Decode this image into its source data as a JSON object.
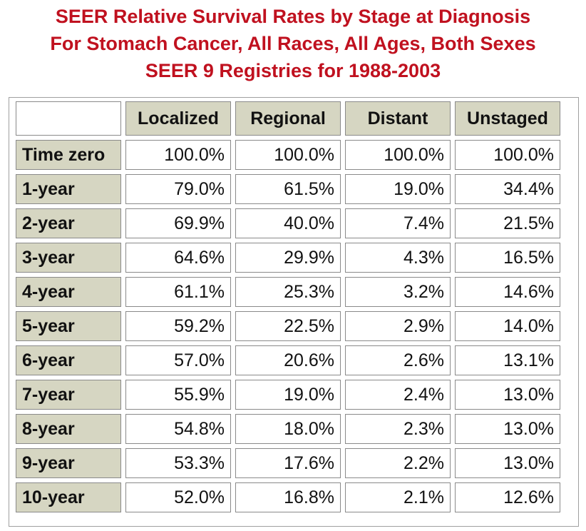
{
  "title": {
    "line1": "SEER Relative Survival Rates by Stage at Diagnosis",
    "line2": "For Stomach Cancer, All Races, All Ages, Both Sexes",
    "line3": "SEER 9 Registries for 1988-2003"
  },
  "table": {
    "columns": [
      "Localized",
      "Regional",
      "Distant",
      "Unstaged"
    ],
    "rows": [
      {
        "label": "Time zero",
        "values": [
          "100.0%",
          "100.0%",
          "100.0%",
          "100.0%"
        ]
      },
      {
        "label": "1-year",
        "values": [
          "79.0%",
          "61.5%",
          "19.0%",
          "34.4%"
        ]
      },
      {
        "label": "2-year",
        "values": [
          "69.9%",
          "40.0%",
          "7.4%",
          "21.5%"
        ]
      },
      {
        "label": "3-year",
        "values": [
          "64.6%",
          "29.9%",
          "4.3%",
          "16.5%"
        ]
      },
      {
        "label": "4-year",
        "values": [
          "61.1%",
          "25.3%",
          "3.2%",
          "14.6%"
        ]
      },
      {
        "label": "5-year",
        "values": [
          "59.2%",
          "22.5%",
          "2.9%",
          "14.0%"
        ]
      },
      {
        "label": "6-year",
        "values": [
          "57.0%",
          "20.6%",
          "2.6%",
          "13.1%"
        ]
      },
      {
        "label": "7-year",
        "values": [
          "55.9%",
          "19.0%",
          "2.4%",
          "13.0%"
        ]
      },
      {
        "label": "8-year",
        "values": [
          "54.8%",
          "18.0%",
          "2.3%",
          "13.0%"
        ]
      },
      {
        "label": "9-year",
        "values": [
          "53.3%",
          "17.6%",
          "2.2%",
          "13.0%"
        ]
      },
      {
        "label": "10-year",
        "values": [
          "52.0%",
          "16.8%",
          "2.1%",
          "12.6%"
        ]
      }
    ]
  },
  "colors": {
    "title": "#c0111f",
    "header_bg": "#d6d6c2",
    "cell_bg": "#ffffff"
  }
}
